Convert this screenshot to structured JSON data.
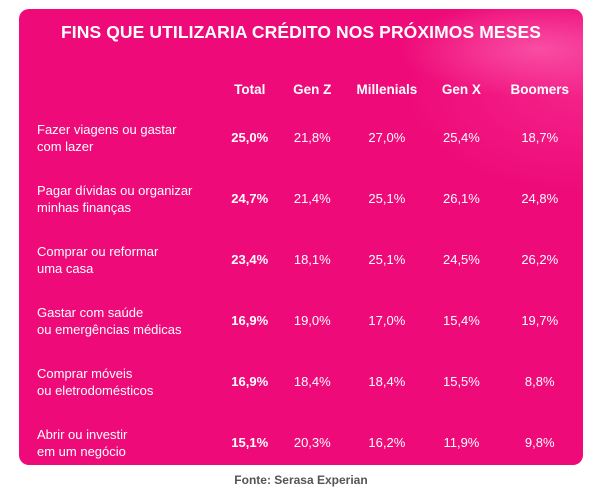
{
  "chart_data": {
    "type": "table",
    "title": "FINS QUE UTILIZARIA CRÉDITO NOS PRÓXIMOS MESES",
    "columns": [
      "Total",
      "Gen Z",
      "Millenials",
      "Gen X",
      "Boomers"
    ],
    "rows": [
      {
        "label_line1": "Fazer viagens ou gastar",
        "label_line2": "com lazer",
        "values": [
          "25,0%",
          "21,8%",
          "27,0%",
          "25,4%",
          "18,7%"
        ]
      },
      {
        "label_line1": "Pagar dívidas ou organizar",
        "label_line2": "minhas finanças",
        "values": [
          "24,7%",
          "21,4%",
          "25,1%",
          "26,1%",
          "24,8%"
        ]
      },
      {
        "label_line1": "Comprar ou reformar",
        "label_line2": "uma casa",
        "values": [
          "23,4%",
          "18,1%",
          "25,1%",
          "24,5%",
          "26,2%"
        ]
      },
      {
        "label_line1": "Gastar com saúde",
        "label_line2": "ou emergências médicas",
        "values": [
          "16,9%",
          "19,0%",
          "17,0%",
          "15,4%",
          "19,7%"
        ]
      },
      {
        "label_line1": "Comprar móveis",
        "label_line2": "ou eletrodomésticos",
        "values": [
          "16,9%",
          "18,4%",
          "18,4%",
          "15,5%",
          "8,8%"
        ]
      },
      {
        "label_line1": "Abrir ou investir",
        "label_line2": "em um negócio",
        "values": [
          "15,1%",
          "20,3%",
          "16,2%",
          "11,9%",
          "9,8%"
        ]
      }
    ],
    "source": "Fonte: Serasa Experian"
  },
  "colors": {
    "card_background": "#ee0a78",
    "text": "#ffffff",
    "source_text": "#555555"
  }
}
